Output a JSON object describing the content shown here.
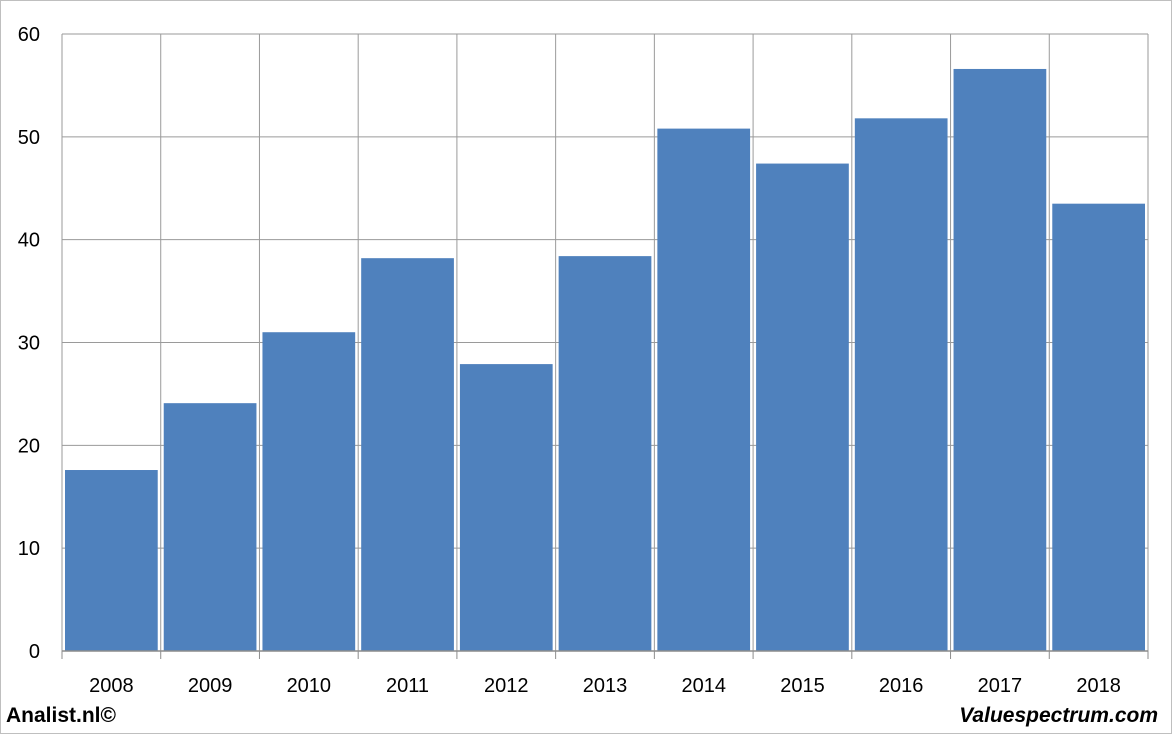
{
  "chart_data": {
    "type": "bar",
    "categories": [
      "2008",
      "2009",
      "2010",
      "2011",
      "2012",
      "2013",
      "2014",
      "2015",
      "2016",
      "2017",
      "2018"
    ],
    "values": [
      17.6,
      24.1,
      31.0,
      38.2,
      27.9,
      38.4,
      50.8,
      47.4,
      51.8,
      56.6,
      43.5
    ],
    "title": "",
    "xlabel": "",
    "ylabel": "",
    "ylim": [
      0,
      60
    ],
    "yticks": [
      0,
      10,
      20,
      30,
      40,
      50,
      60
    ],
    "grid": true,
    "bar_color": "#4f81bd",
    "grid_color": "#9a9a9a"
  },
  "footer": {
    "left": "Analist.nl©",
    "right": "Valuespectrum.com"
  }
}
